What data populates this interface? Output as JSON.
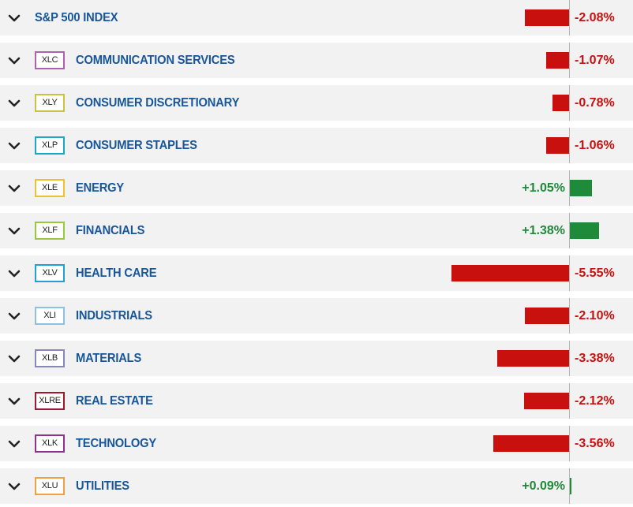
{
  "colors": {
    "negative": "#c8100f",
    "positive": "#1e8a3a",
    "label": "#17569b",
    "row_background": "#f2f2f2"
  },
  "index": {
    "name": "S&P 500 INDEX",
    "change": "-2.08%",
    "value": -2.08
  },
  "sectors": [
    {
      "ticker": "XLC",
      "name": "COMMUNICATION SERVICES",
      "change": "-1.07%",
      "value": -1.07,
      "ticker_color": "#b060b0"
    },
    {
      "ticker": "XLY",
      "name": "CONSUMER DISCRETIONARY",
      "change": "-0.78%",
      "value": -0.78,
      "ticker_color": "#c8c440"
    },
    {
      "ticker": "XLP",
      "name": "CONSUMER STAPLES",
      "change": "-1.06%",
      "value": -1.06,
      "ticker_color": "#1aa8c0"
    },
    {
      "ticker": "XLE",
      "name": "ENERGY",
      "change": "+1.05%",
      "value": 1.05,
      "ticker_color": "#f0c030"
    },
    {
      "ticker": "XLF",
      "name": "FINANCIALS",
      "change": "+1.38%",
      "value": 1.38,
      "ticker_color": "#98c840"
    },
    {
      "ticker": "XLV",
      "name": "HEALTH CARE",
      "change": "-5.55%",
      "value": -5.55,
      "ticker_color": "#20a0d8"
    },
    {
      "ticker": "XLI",
      "name": "INDUSTRIALS",
      "change": "-2.10%",
      "value": -2.1,
      "ticker_color": "#90c0e0"
    },
    {
      "ticker": "XLB",
      "name": "MATERIALS",
      "change": "-3.38%",
      "value": -3.38,
      "ticker_color": "#8888b8"
    },
    {
      "ticker": "XLRE",
      "name": "REAL ESTATE",
      "change": "-2.12%",
      "value": -2.12,
      "ticker_color": "#a01830"
    },
    {
      "ticker": "XLK",
      "name": "TECHNOLOGY",
      "change": "-3.56%",
      "value": -3.56,
      "ticker_color": "#903090"
    },
    {
      "ticker": "XLU",
      "name": "UTILITIES",
      "change": "+0.09%",
      "value": 0.09,
      "ticker_color": "#f0a040"
    }
  ],
  "icons": {
    "expand": "chevron-down-icon"
  }
}
